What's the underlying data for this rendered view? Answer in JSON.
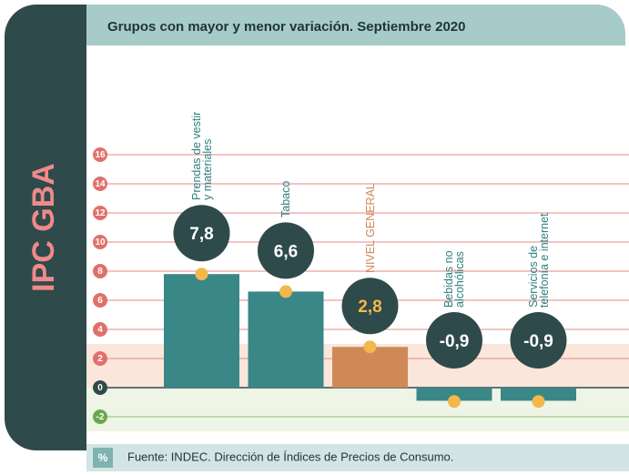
{
  "side_label": "IPC GBA",
  "footer": {
    "badge": "%",
    "source": "Fuente: INDEC. Dirección de Índices de Precios de Consumo."
  },
  "chart_data": {
    "type": "bar",
    "title": "Grupos con mayor y menor variación. Septiembre 2020",
    "categories": [
      "Prendas de vestir y materiales",
      "Tabaco",
      "NIVEL GENERAL",
      "Bebidas no alcohólicas",
      "Servicios de telefonía e internet"
    ],
    "values": [
      7.8,
      6.6,
      2.8,
      -0.9,
      -0.9
    ],
    "value_labels": [
      "7,8",
      "6,6",
      "2,8",
      "-0,9",
      "-0,9"
    ],
    "colors": [
      "#3a8787",
      "#3a8787",
      "#d08858",
      "#3a8787",
      "#3a8787"
    ],
    "ylim": [
      -3,
      17
    ],
    "yticks": [
      -2,
      0,
      2,
      4,
      6,
      8,
      10,
      12,
      14,
      16
    ],
    "grid": true
  }
}
